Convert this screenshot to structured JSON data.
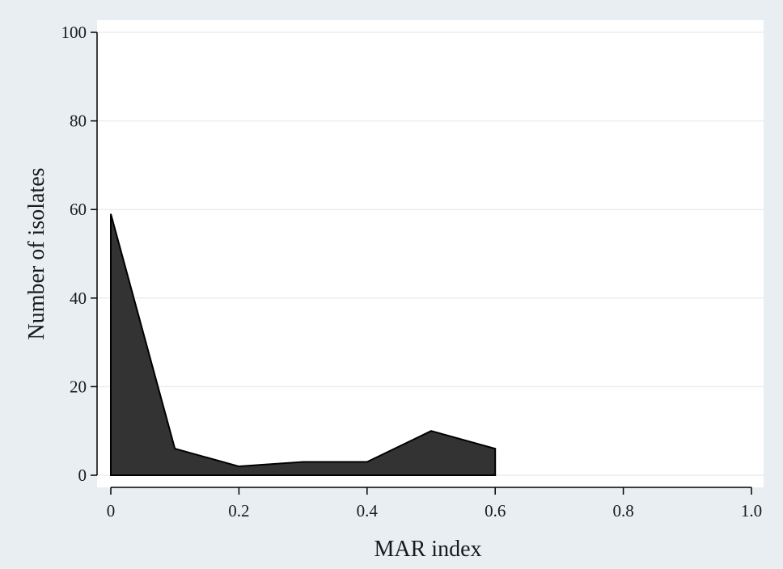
{
  "chart_data": {
    "type": "area",
    "title": "",
    "xlabel": "MAR index",
    "ylabel": "Number of isolates",
    "xlim": [
      0,
      1.0
    ],
    "ylim": [
      0,
      100
    ],
    "x_ticks": [
      0,
      0.2,
      0.4,
      0.6,
      0.8,
      1.0
    ],
    "x_tick_labels": [
      "0",
      "0.2",
      "0.4",
      "0.6",
      "0.8",
      "1.0"
    ],
    "y_ticks": [
      0,
      20,
      40,
      60,
      80,
      100
    ],
    "y_tick_labels": [
      "0",
      "20",
      "40",
      "60",
      "80",
      "100"
    ],
    "grid": "horizontal",
    "series": [
      {
        "x": [
          0,
          0.1,
          0.2,
          0.3,
          0.4,
          0.5,
          0.6
        ],
        "values": [
          59,
          6,
          2,
          3,
          3,
          10,
          6
        ],
        "fill": "#333333",
        "stroke": "#000000"
      }
    ],
    "colors": {
      "background": "#e8eef2",
      "plot_background": "#ffffff",
      "grid": "#e8eef2",
      "axis": "#000000"
    }
  }
}
